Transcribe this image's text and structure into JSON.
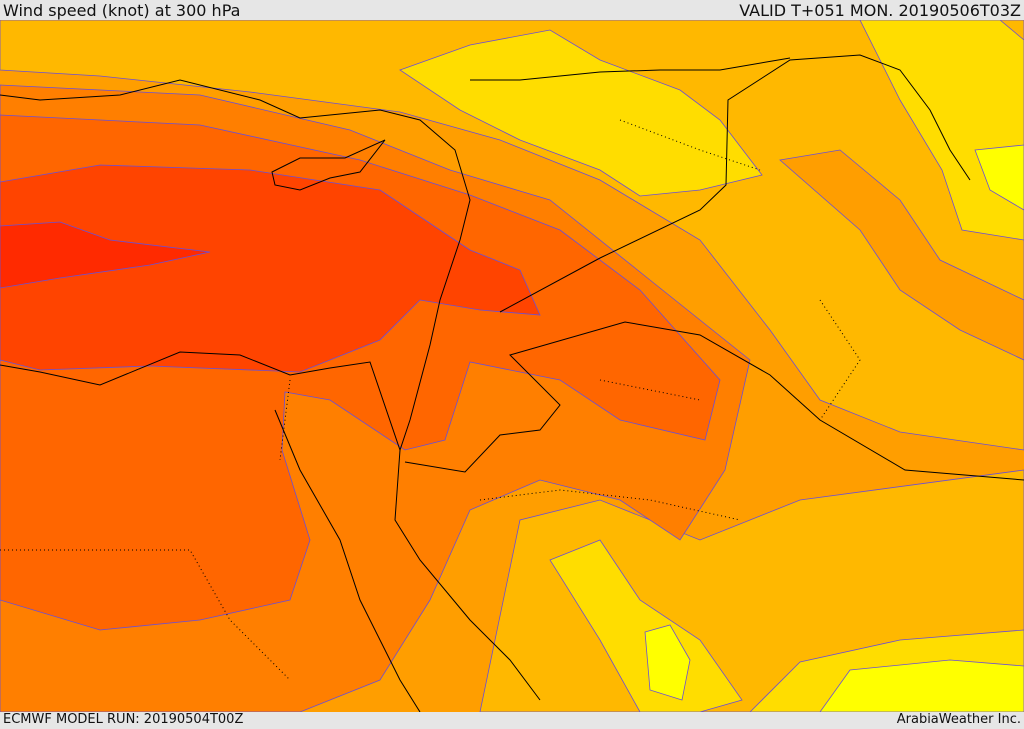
{
  "header": {
    "title": "Wind speed (knot) at 300 hPa",
    "valid": "VALID T+051 MON. 20190506T03Z"
  },
  "footer": {
    "model_run": "ECMWF MODEL RUN: 20190504T00Z",
    "brand": "ArabiaWeather Inc."
  },
  "palette": {
    "bright_yellow": "#ffff00",
    "yellow": "#ffdd00",
    "light_orange": "#ffb800",
    "orange": "#ff9e00",
    "dark_orange": "#ff7f00",
    "red_orange": "#ff6600",
    "orange_red": "#ff4400",
    "red": "#ff2a00",
    "contour": "#6a4fd6"
  }
}
